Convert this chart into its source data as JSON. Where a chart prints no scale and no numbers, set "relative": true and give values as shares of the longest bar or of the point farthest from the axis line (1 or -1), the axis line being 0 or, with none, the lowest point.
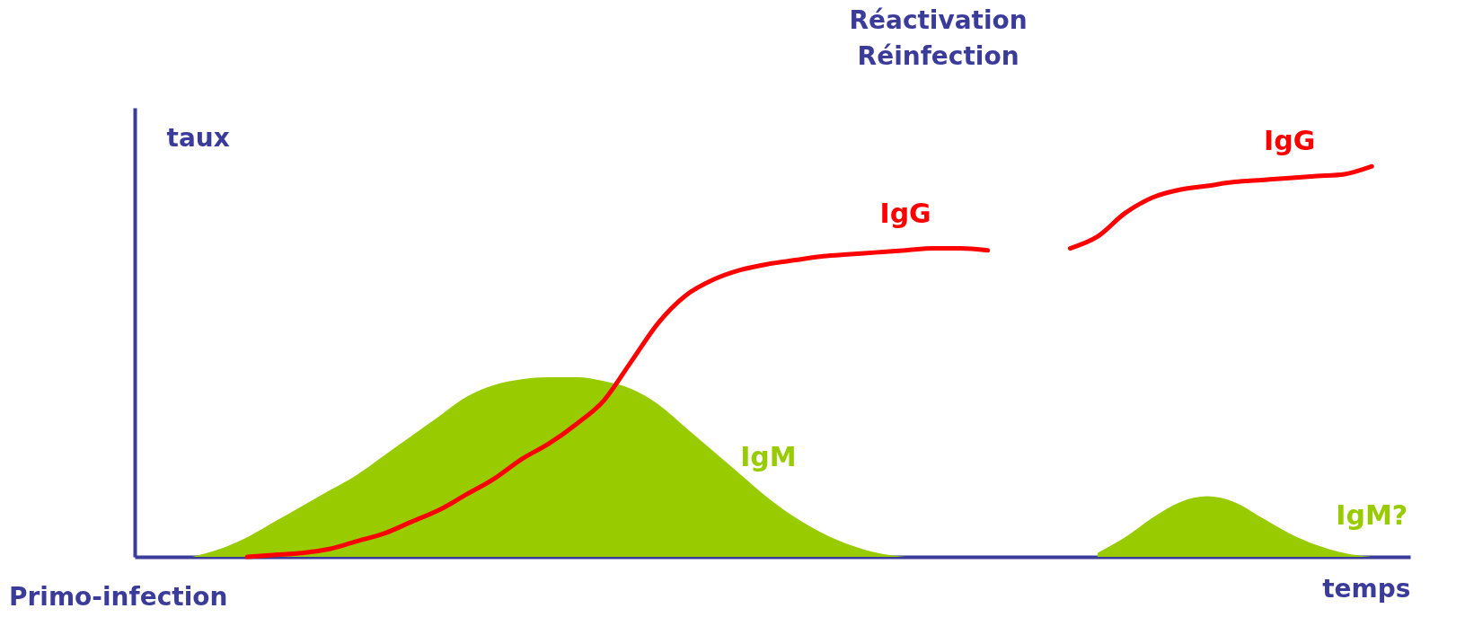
{
  "chart_data": {
    "type": "line",
    "relative": true,
    "xlabel": "temps",
    "ylabel": "taux",
    "grid": false,
    "annotations": [
      "Primo-infection",
      "Réactivation\nRéinfection"
    ],
    "categories": [
      null,
      null,
      null,
      null,
      null,
      null,
      null,
      null,
      null,
      null,
      null,
      null,
      null,
      null,
      null,
      null,
      null,
      null,
      null,
      null,
      null,
      null,
      null,
      null,
      null,
      null,
      null,
      null,
      null,
      null,
      null,
      null,
      null,
      null,
      null,
      null,
      null,
      null,
      null,
      null,
      null,
      null,
      null,
      null,
      null,
      null,
      null
    ],
    "series": [
      {
        "name": "IgM",
        "type": "area",
        "color": "#99cc00",
        "values": [
          null,
          null,
          0,
          0.02,
          0.05,
          0.09,
          0.13,
          0.17,
          0.21,
          0.26,
          0.31,
          0.36,
          0.41,
          0.44,
          0.455,
          0.46,
          0.46,
          0.45,
          0.43,
          0.39,
          0.33,
          0.27,
          0.21,
          0.15,
          0.1,
          0.06,
          0.03,
          0.01,
          0,
          null,
          null,
          null,
          null,
          null,
          null,
          null,
          null,
          null,
          null,
          null,
          null,
          null,
          null,
          null,
          null,
          null,
          null
        ]
      },
      {
        "name": "IgG",
        "type": "line",
        "color": "#ff0000",
        "values": [
          null,
          null,
          null,
          null,
          0,
          0.005,
          0.01,
          0.02,
          0.04,
          0.06,
          0.09,
          0.12,
          0.16,
          0.2,
          0.25,
          0.29,
          0.34,
          0.4,
          0.5,
          0.6,
          0.67,
          0.71,
          0.735,
          0.75,
          0.76,
          0.77,
          0.775,
          0.78,
          0.785,
          0.79,
          0.79,
          0.785,
          null,
          null,
          null,
          null,
          null,
          null,
          null,
          null,
          null,
          null,
          null,
          null,
          null,
          null,
          null
        ]
      },
      {
        "name": "IgG",
        "type": "line",
        "color": "#ff0000",
        "values": [
          null,
          null,
          null,
          null,
          null,
          null,
          null,
          null,
          null,
          null,
          null,
          null,
          null,
          null,
          null,
          null,
          null,
          null,
          null,
          null,
          null,
          null,
          null,
          null,
          null,
          null,
          null,
          null,
          null,
          null,
          null,
          null,
          null,
          null,
          0.79,
          0.82,
          0.88,
          0.92,
          0.94,
          0.95,
          0.96,
          0.965,
          0.97,
          0.975,
          0.98,
          1,
          null
        ]
      },
      {
        "name": "IgM?",
        "type": "area",
        "color": "#99cc00",
        "values": [
          null,
          null,
          null,
          null,
          null,
          null,
          null,
          null,
          null,
          null,
          null,
          null,
          null,
          null,
          null,
          null,
          null,
          null,
          null,
          null,
          null,
          null,
          null,
          null,
          null,
          null,
          null,
          null,
          null,
          null,
          null,
          null,
          null,
          null,
          null,
          0.01,
          0.05,
          0.1,
          0.14,
          0.155,
          0.14,
          0.1,
          0.06,
          0.03,
          0.01,
          0,
          null
        ]
      }
    ]
  }
}
